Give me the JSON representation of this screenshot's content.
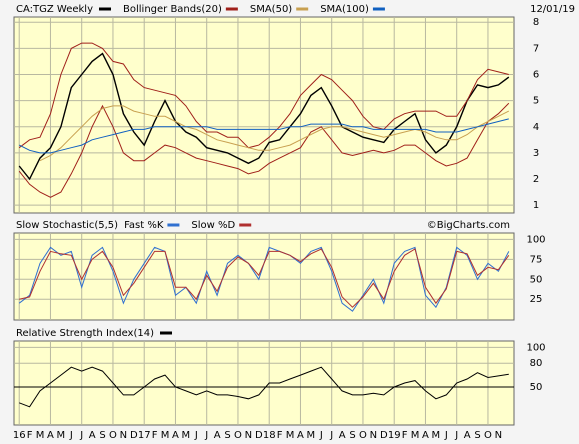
{
  "chart_data": [
    {
      "type": "line",
      "title": "CA:TGZ Weekly",
      "date": "12/01/19",
      "categories": [
        "16",
        "F",
        "M",
        "A",
        "M",
        "J",
        "J",
        "A",
        "S",
        "O",
        "N",
        "D",
        "17",
        "F",
        "M",
        "A",
        "M",
        "J",
        "J",
        "A",
        "S",
        "O",
        "N",
        "D",
        "18",
        "F",
        "M",
        "A",
        "M",
        "J",
        "J",
        "A",
        "S",
        "O",
        "N",
        "D",
        "19",
        "F",
        "M",
        "A",
        "M",
        "J",
        "J",
        "A",
        "S",
        "O",
        "N",
        null
      ],
      "ylim": [
        0.7,
        8.2
      ],
      "yticks": [
        1,
        2,
        3,
        4,
        5,
        6,
        7,
        8
      ],
      "grid": true,
      "series": [
        {
          "color": "#000000",
          "values": [
            2.5,
            2.0,
            2.8,
            3.2,
            4.0,
            5.5,
            6.0,
            6.5,
            6.8,
            6.0,
            4.5,
            3.8,
            3.3,
            4.2,
            5.0,
            4.2,
            3.8,
            3.6,
            3.2,
            3.1,
            3.0,
            2.8,
            2.6,
            2.8,
            3.4,
            3.5,
            4.0,
            4.5,
            5.2,
            5.5,
            4.8,
            4.0,
            3.8,
            3.6,
            3.5,
            3.4,
            3.9,
            4.2,
            4.5,
            3.5,
            3.0,
            3.3,
            4.0,
            5.0,
            5.6,
            5.5,
            5.6,
            5.9
          ]
        },
        {
          "name": "Bollinger Bands(20)",
          "color": "#a0201a",
          "values": [
            3.2,
            3.5,
            3.6,
            4.5,
            6.0,
            7.0,
            7.2,
            7.2,
            7.0,
            6.5,
            6.4,
            5.8,
            5.5,
            5.4,
            5.3,
            5.2,
            4.8,
            4.2,
            3.8,
            3.8,
            3.6,
            3.6,
            3.2,
            3.3,
            3.6,
            4.0,
            4.5,
            5.2,
            5.6,
            6.0,
            5.8,
            5.4,
            5.0,
            4.4,
            4.0,
            3.9,
            4.3,
            4.5,
            4.6,
            4.6,
            4.6,
            4.4,
            4.4,
            5.0,
            5.8,
            6.2,
            6.1,
            6.0
          ],
          "lower": [
            2.3,
            1.8,
            1.5,
            1.3,
            1.5,
            2.2,
            3.0,
            4.0,
            4.8,
            4.0,
            3.0,
            2.7,
            2.7,
            3.0,
            3.3,
            3.2,
            3.0,
            2.8,
            2.7,
            2.6,
            2.5,
            2.4,
            2.2,
            2.3,
            2.6,
            2.8,
            3.0,
            3.2,
            3.8,
            4.0,
            3.5,
            3.0,
            2.9,
            3.0,
            3.1,
            3.0,
            3.1,
            3.3,
            3.3,
            3.0,
            2.7,
            2.5,
            2.6,
            2.8,
            3.5,
            4.2,
            4.5,
            4.9
          ]
        },
        {
          "name": "SMA(50)",
          "color": "#c8a050",
          "values": [
            null,
            null,
            2.7,
            2.9,
            3.2,
            3.6,
            4.0,
            4.4,
            4.7,
            4.8,
            4.8,
            4.6,
            4.5,
            4.4,
            4.4,
            4.2,
            4.0,
            3.9,
            3.7,
            3.5,
            3.4,
            3.3,
            3.2,
            3.1,
            3.1,
            3.2,
            3.3,
            3.5,
            3.7,
            3.9,
            4.0,
            4.0,
            3.9,
            3.8,
            3.7,
            3.6,
            3.7,
            3.8,
            3.9,
            3.8,
            3.6,
            3.5,
            3.5,
            3.7,
            4.0,
            4.2,
            4.4,
            4.6
          ]
        },
        {
          "name": "SMA(100)",
          "color": "#1060c0",
          "values": [
            3.3,
            3.1,
            3.0,
            3.0,
            3.1,
            3.2,
            3.3,
            3.5,
            3.6,
            3.7,
            3.8,
            3.9,
            3.9,
            4.0,
            4.0,
            4.0,
            4.0,
            4.0,
            4.0,
            3.9,
            3.9,
            3.9,
            3.9,
            3.9,
            3.9,
            3.9,
            4.0,
            4.0,
            4.1,
            4.1,
            4.1,
            4.1,
            4.0,
            4.0,
            3.9,
            3.9,
            3.9,
            3.9,
            3.9,
            3.9,
            3.8,
            3.8,
            3.8,
            3.9,
            4.0,
            4.1,
            4.2,
            4.3
          ]
        }
      ]
    },
    {
      "type": "line",
      "title": "Slow Stochastic(5,5)",
      "source": "©BigCharts.com",
      "ylim": [
        -1,
        108
      ],
      "yticks": [
        25,
        50,
        75,
        100
      ],
      "grid": true,
      "series": [
        {
          "name": "Fast %K",
          "color": "#3070d0",
          "values": [
            20,
            30,
            70,
            90,
            80,
            85,
            40,
            80,
            90,
            60,
            20,
            50,
            70,
            90,
            85,
            30,
            40,
            20,
            60,
            30,
            70,
            80,
            70,
            50,
            90,
            85,
            80,
            70,
            85,
            90,
            60,
            20,
            10,
            30,
            50,
            20,
            70,
            85,
            90,
            30,
            15,
            40,
            90,
            80,
            50,
            70,
            60,
            85
          ]
        },
        {
          "name": "Slow %D",
          "color": "#b03030",
          "values": [
            25,
            28,
            60,
            85,
            82,
            80,
            50,
            75,
            85,
            65,
            30,
            45,
            65,
            85,
            85,
            40,
            40,
            25,
            55,
            35,
            65,
            78,
            70,
            55,
            85,
            85,
            80,
            72,
            82,
            88,
            65,
            28,
            15,
            28,
            45,
            25,
            60,
            80,
            88,
            40,
            20,
            38,
            85,
            82,
            55,
            65,
            62,
            80
          ]
        }
      ]
    },
    {
      "type": "line",
      "title": "Relative Strength Index(14)",
      "ylim": [
        2,
        108
      ],
      "yticks": [
        50,
        80,
        100
      ],
      "grid": true,
      "series": [
        {
          "color": "#000000",
          "values": [
            30,
            25,
            45,
            55,
            65,
            75,
            70,
            75,
            70,
            55,
            40,
            40,
            50,
            60,
            65,
            50,
            45,
            40,
            45,
            40,
            40,
            38,
            35,
            40,
            55,
            55,
            60,
            65,
            70,
            75,
            60,
            45,
            40,
            40,
            42,
            40,
            50,
            55,
            58,
            45,
            35,
            40,
            55,
            60,
            68,
            62,
            64,
            66
          ]
        }
      ]
    }
  ]
}
